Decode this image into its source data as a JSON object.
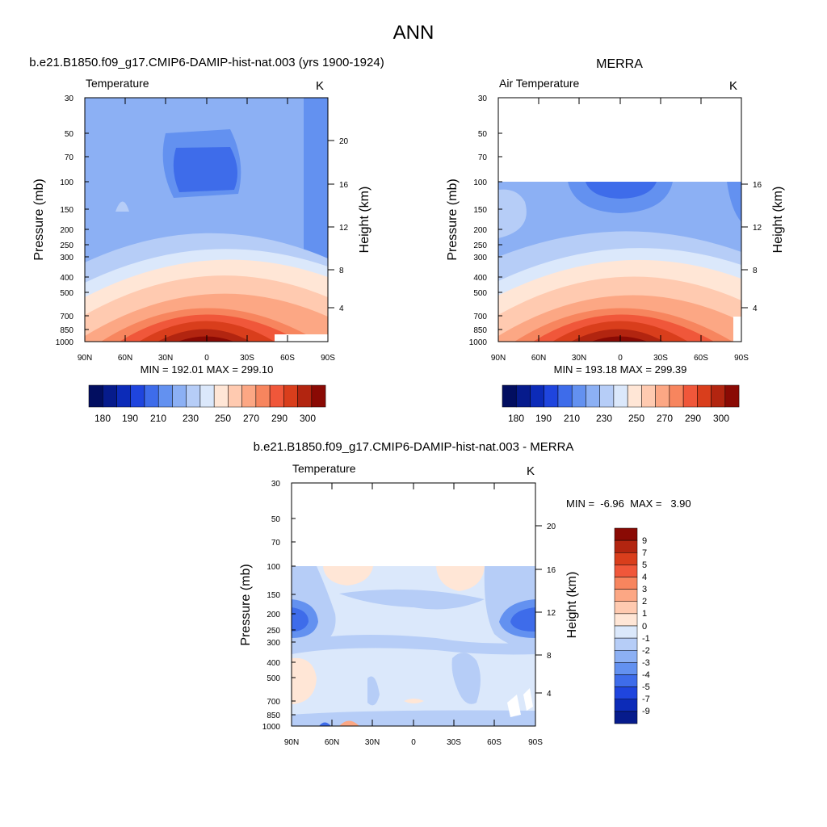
{
  "figure_title": "ANN",
  "colors": {
    "warm_ramp": [
      "#FFE6D6",
      "#FFCAB0",
      "#FCA784",
      "#F7855E",
      "#F0573A",
      "#D93E1C",
      "#B22510",
      "#8A0A04"
    ],
    "cool_ramp": [
      "#DBE8FB",
      "#B6CDF7",
      "#8CB0F4",
      "#6391F0",
      "#3E6CEA",
      "#1F45DE",
      "#0C2BB8",
      "#061B8C",
      "#020E60"
    ],
    "axis": "#000000",
    "missing": "#FFFFFF"
  },
  "chart_data": [
    {
      "type": "heatmap",
      "id": "model",
      "title": "b.e21.B1850.f09_g17.CMIP6-DAMIP-hist-nat.003 (yrs 1900-1924)",
      "left_label": "Temperature",
      "units": "K",
      "xlabel": "",
      "ylabel": "Pressure (mb)",
      "y2label": "Height (km)",
      "x_ticks": [
        "90N",
        "60N",
        "30N",
        "0",
        "30S",
        "60S",
        "90S"
      ],
      "y_ticks": [
        "30",
        "50",
        "70",
        "100",
        "150",
        "200",
        "250",
        "300",
        "400",
        "500",
        "700",
        "850",
        "1000"
      ],
      "y2_ticks": [
        "20",
        "16",
        "12",
        "8",
        "4"
      ],
      "xlim": [
        90,
        -90
      ],
      "ylim": [
        1000,
        30
      ],
      "data_top_mb": 30,
      "stats": "MIN = 192.01  MAX = 299.10",
      "min": 192.01,
      "max": 299.1,
      "colorbar": {
        "orientation": "horizontal",
        "levels": [
          180,
          185,
          190,
          200,
          210,
          220,
          230,
          240,
          250,
          260,
          270,
          275,
          280,
          290,
          295,
          300
        ],
        "labels": [
          "180",
          "190",
          "210",
          "230",
          "250",
          "270",
          "290",
          "300"
        ],
        "colors": [
          "#020E60",
          "#061B8C",
          "#0C2BB8",
          "#1F45DE",
          "#3E6CEA",
          "#6391F0",
          "#8CB0F4",
          "#B6CDF7",
          "#DBE8FB",
          "#FFE6D6",
          "#FFCAB0",
          "#FCA784",
          "#F7855E",
          "#F0573A",
          "#D93E1C",
          "#B22510",
          "#8A0A04"
        ]
      }
    },
    {
      "type": "heatmap",
      "id": "obs",
      "title": "MERRA",
      "left_label": "Air Temperature",
      "units": "K",
      "xlabel": "",
      "ylabel": "Pressure (mb)",
      "y2label": "Height (km)",
      "x_ticks": [
        "90N",
        "60N",
        "30N",
        "0",
        "30S",
        "60S",
        "90S"
      ],
      "y_ticks": [
        "30",
        "50",
        "70",
        "100",
        "150",
        "200",
        "250",
        "300",
        "400",
        "500",
        "700",
        "850",
        "1000"
      ],
      "y2_ticks": [
        "16",
        "12",
        "8",
        "4"
      ],
      "xlim": [
        90,
        -90
      ],
      "ylim": [
        1000,
        30
      ],
      "data_top_mb": 100,
      "stats": "MIN = 193.18  MAX = 299.39",
      "min": 193.18,
      "max": 299.39,
      "colorbar": {
        "orientation": "horizontal",
        "levels": [
          180,
          185,
          190,
          200,
          210,
          220,
          230,
          240,
          250,
          260,
          270,
          275,
          280,
          290,
          295,
          300
        ],
        "labels": [
          "180",
          "190",
          "210",
          "230",
          "250",
          "270",
          "290",
          "300"
        ],
        "colors": [
          "#020E60",
          "#061B8C",
          "#0C2BB8",
          "#1F45DE",
          "#3E6CEA",
          "#6391F0",
          "#8CB0F4",
          "#B6CDF7",
          "#DBE8FB",
          "#FFE6D6",
          "#FFCAB0",
          "#FCA784",
          "#F7855E",
          "#F0573A",
          "#D93E1C",
          "#B22510",
          "#8A0A04"
        ]
      }
    },
    {
      "type": "heatmap",
      "id": "diff",
      "title": "b.e21.B1850.f09_g17.CMIP6-DAMIP-hist-nat.003 - MERRA",
      "left_label": "Temperature",
      "units": "K",
      "xlabel": "",
      "ylabel": "Pressure (mb)",
      "y2label": "Height (km)",
      "x_ticks": [
        "90N",
        "60N",
        "30N",
        "0",
        "30S",
        "60S",
        "90S"
      ],
      "y_ticks": [
        "30",
        "50",
        "70",
        "100",
        "150",
        "200",
        "250",
        "300",
        "400",
        "500",
        "700",
        "850",
        "1000"
      ],
      "y2_ticks": [
        "20",
        "16",
        "12",
        "8",
        "4"
      ],
      "xlim": [
        90,
        -90
      ],
      "ylim": [
        1000,
        30
      ],
      "data_top_mb": 100,
      "stats": "MIN =  -6.96  MAX =   3.90",
      "min": -6.96,
      "max": 3.9,
      "colorbar": {
        "orientation": "vertical",
        "labels": [
          "9",
          "7",
          "5",
          "4",
          "3",
          "2",
          "1",
          "0",
          "-1",
          "-2",
          "-3",
          "-4",
          "-5",
          "-7",
          "-9"
        ],
        "colors": [
          "#8A0A04",
          "#B22510",
          "#D93E1C",
          "#F0573A",
          "#F7855E",
          "#FCA784",
          "#FFCAB0",
          "#FFE6D6",
          "#DBE8FB",
          "#B6CDF7",
          "#8CB0F4",
          "#6391F0",
          "#3E6CEA",
          "#1F45DE",
          "#0C2BB8",
          "#061B8C"
        ]
      }
    }
  ]
}
